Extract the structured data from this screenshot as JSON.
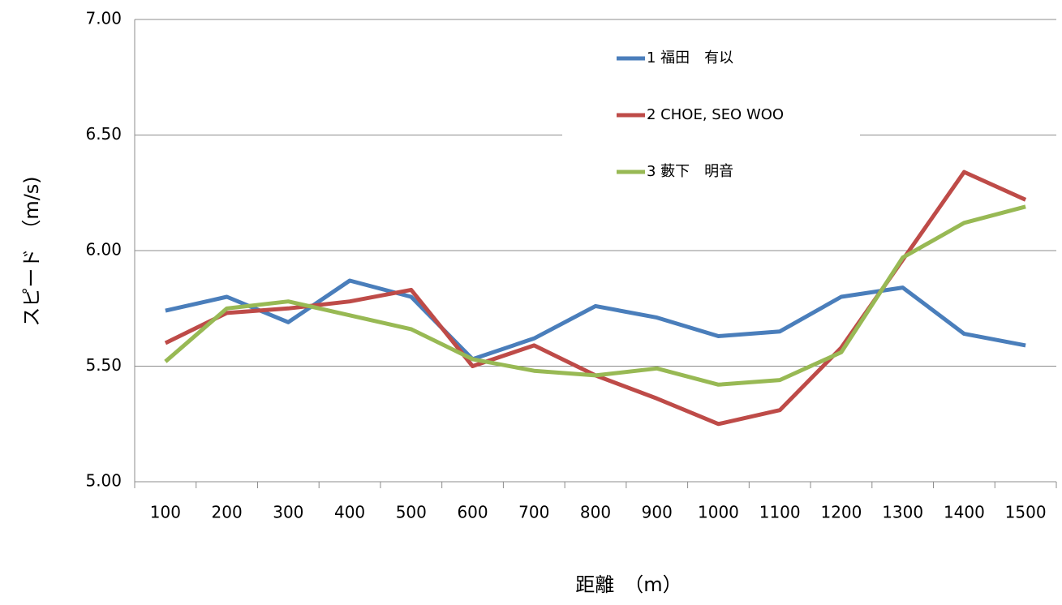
{
  "chart_data": {
    "type": "line",
    "x_label": "距離　（m）",
    "y_label": "スピード　（m/s)",
    "categories": [
      "100",
      "200",
      "300",
      "400",
      "500",
      "600",
      "700",
      "800",
      "900",
      "1000",
      "1100",
      "1200",
      "1300",
      "1400",
      "1500"
    ],
    "series": [
      {
        "name": "1 福田　有以",
        "color": "#4a7ebb",
        "values": [
          5.74,
          5.8,
          5.69,
          5.87,
          5.8,
          5.53,
          5.62,
          5.76,
          5.71,
          5.63,
          5.65,
          5.8,
          5.84,
          5.64,
          5.59
        ]
      },
      {
        "name": "2 CHOE, SEO WOO",
        "color": "#be4b48",
        "values": [
          5.6,
          5.73,
          5.75,
          5.78,
          5.83,
          5.5,
          5.59,
          5.46,
          5.36,
          5.25,
          5.31,
          5.58,
          5.96,
          6.34,
          6.22
        ]
      },
      {
        "name": "3 藪下　明音",
        "color": "#98b954",
        "values": [
          5.52,
          5.75,
          5.78,
          5.72,
          5.66,
          5.53,
          5.48,
          5.46,
          5.49,
          5.42,
          5.44,
          5.56,
          5.97,
          6.12,
          6.19
        ]
      }
    ],
    "ylim": [
      5,
      7
    ],
    "yticks": [
      {
        "value": 5,
        "label": "5.00"
      },
      {
        "value": 5.5,
        "label": "5.50"
      },
      {
        "value": 6,
        "label": "6.00"
      },
      {
        "value": 6.5,
        "label": "6.50"
      },
      {
        "value": 7,
        "label": "7.00"
      }
    ],
    "grid": true,
    "legend": "top-right"
  }
}
